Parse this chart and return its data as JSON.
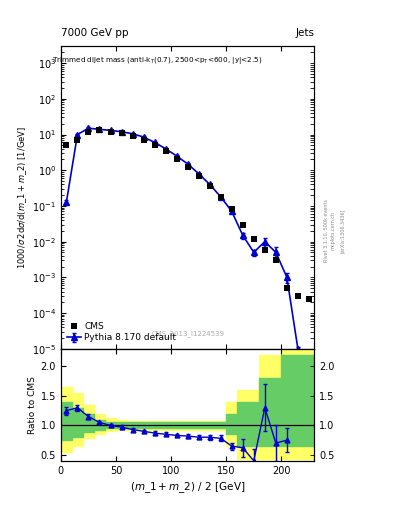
{
  "title_left": "7000 GeV pp",
  "title_right": "Jets",
  "cms_label": "CMS_2013_I1224539",
  "ylabel_main": "1000/σ 2dσ/d(m_1 + m_2) [1/GeV]",
  "ylabel_ratio": "Ratio to CMS",
  "xlabel": "(m_1 + m_2) / 2 [GeV]",
  "main_xlim": [
    0,
    230
  ],
  "main_ylim": [
    1e-05,
    3000.0
  ],
  "ratio_ylim": [
    0.4,
    2.3
  ],
  "ratio_yticks": [
    0.5,
    1.0,
    1.5,
    2.0
  ],
  "cms_x": [
    5,
    15,
    25,
    35,
    45,
    55,
    65,
    75,
    85,
    95,
    105,
    115,
    125,
    135,
    145,
    155,
    165,
    175,
    185,
    195,
    205,
    215,
    225
  ],
  "cms_y": [
    5.0,
    7.0,
    12.0,
    13.0,
    12.0,
    11.0,
    9.0,
    7.0,
    5.0,
    3.5,
    2.0,
    1.2,
    0.7,
    0.35,
    0.18,
    0.08,
    0.03,
    0.012,
    0.006,
    0.003,
    0.0005,
    0.0003,
    0.00025
  ],
  "pythia_x": [
    5,
    15,
    25,
    35,
    45,
    55,
    65,
    75,
    85,
    95,
    105,
    115,
    125,
    135,
    145,
    155,
    165,
    175,
    185,
    195,
    205,
    215
  ],
  "pythia_y": [
    0.13,
    10.0,
    15.0,
    14.0,
    13.0,
    12.0,
    10.5,
    8.5,
    6.0,
    4.0,
    2.5,
    1.5,
    0.8,
    0.4,
    0.18,
    0.07,
    0.015,
    0.005,
    0.01,
    0.005,
    0.001,
    1e-05
  ],
  "pythia_yerr_lo": [
    0.02,
    0.5,
    0.8,
    0.7,
    0.6,
    0.5,
    0.45,
    0.4,
    0.3,
    0.2,
    0.12,
    0.07,
    0.04,
    0.02,
    0.01,
    0.005,
    0.003,
    0.001,
    0.003,
    0.002,
    0.0003,
    1e-06
  ],
  "pythia_yerr_hi": [
    0.02,
    0.5,
    0.8,
    0.7,
    0.6,
    0.5,
    0.45,
    0.4,
    0.3,
    0.2,
    0.12,
    0.07,
    0.04,
    0.02,
    0.01,
    0.005,
    0.003,
    0.001,
    0.003,
    0.002,
    0.0003,
    1e-06
  ],
  "ratio_x": [
    5,
    15,
    25,
    35,
    45,
    55,
    65,
    75,
    85,
    95,
    105,
    115,
    125,
    135,
    145,
    155,
    165,
    175,
    185,
    195,
    205
  ],
  "ratio_y": [
    1.25,
    1.3,
    1.15,
    1.05,
    1.0,
    0.97,
    0.93,
    0.9,
    0.87,
    0.85,
    0.83,
    0.82,
    0.8,
    0.8,
    0.78,
    0.65,
    0.62,
    0.4,
    1.3,
    0.7,
    0.75
  ],
  "ratio_yerr": [
    0.07,
    0.05,
    0.04,
    0.03,
    0.03,
    0.03,
    0.03,
    0.03,
    0.03,
    0.03,
    0.03,
    0.03,
    0.03,
    0.04,
    0.05,
    0.06,
    0.15,
    0.2,
    0.4,
    0.3,
    0.2
  ],
  "green_band_x": [
    0,
    10,
    20,
    30,
    40,
    50,
    60,
    70,
    80,
    90,
    100,
    110,
    120,
    130,
    140,
    150,
    160,
    170,
    180,
    190,
    200,
    210,
    230
  ],
  "green_band_lo": [
    0.75,
    0.8,
    0.88,
    0.93,
    0.95,
    0.96,
    0.96,
    0.96,
    0.96,
    0.96,
    0.96,
    0.96,
    0.96,
    0.96,
    0.96,
    0.85,
    0.65,
    0.65,
    0.65,
    0.65,
    0.65,
    0.65,
    0.65
  ],
  "green_band_hi": [
    1.4,
    1.3,
    1.2,
    1.1,
    1.06,
    1.05,
    1.05,
    1.05,
    1.05,
    1.05,
    1.05,
    1.05,
    1.05,
    1.05,
    1.05,
    1.2,
    1.4,
    1.4,
    1.8,
    1.8,
    2.2,
    2.2,
    2.2
  ],
  "yellow_band_x": [
    0,
    10,
    20,
    30,
    40,
    50,
    60,
    70,
    80,
    90,
    100,
    110,
    120,
    130,
    140,
    150,
    160,
    170,
    180,
    190,
    200,
    210,
    230
  ],
  "yellow_band_lo": [
    0.55,
    0.65,
    0.78,
    0.86,
    0.9,
    0.92,
    0.93,
    0.93,
    0.93,
    0.93,
    0.93,
    0.93,
    0.93,
    0.93,
    0.93,
    0.65,
    0.43,
    0.43,
    0.43,
    0.43,
    0.43,
    0.43,
    0.43
  ],
  "yellow_band_hi": [
    1.65,
    1.55,
    1.35,
    1.2,
    1.12,
    1.1,
    1.08,
    1.08,
    1.08,
    1.08,
    1.08,
    1.08,
    1.08,
    1.08,
    1.08,
    1.4,
    1.6,
    1.6,
    2.2,
    2.2,
    2.5,
    2.5,
    2.5
  ],
  "line_color": "#0000cc",
  "cms_color": "#000000",
  "green_color": "#66cc66",
  "yellow_color": "#ffff66",
  "bg_color": "#ffffff"
}
